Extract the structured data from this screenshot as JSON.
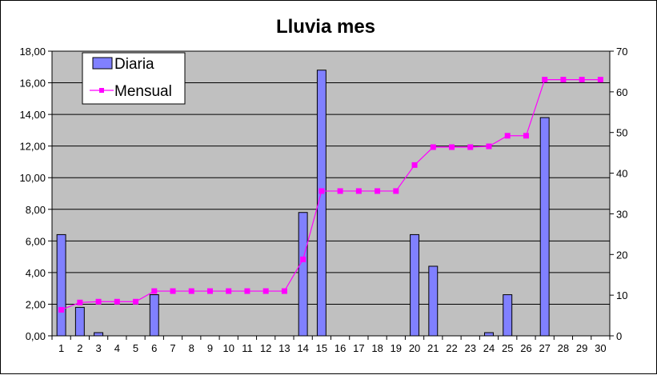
{
  "chart_data": {
    "type": "bar+line",
    "title": "Lluvia mes",
    "categories": [
      "1",
      "2",
      "3",
      "4",
      "5",
      "6",
      "7",
      "8",
      "9",
      "10",
      "11",
      "12",
      "13",
      "14",
      "15",
      "16",
      "17",
      "18",
      "19",
      "20",
      "21",
      "22",
      "23",
      "24",
      "25",
      "26",
      "27",
      "28",
      "29",
      "30"
    ],
    "series": [
      {
        "name": "Diaria",
        "type": "bar",
        "axis": "left",
        "color": "#8080ff",
        "values": [
          6.4,
          1.8,
          0.2,
          0,
          0,
          2.6,
          0,
          0,
          0,
          0,
          0,
          0,
          0,
          7.8,
          16.8,
          0,
          0,
          0,
          0,
          6.4,
          4.4,
          0,
          0,
          0.2,
          2.6,
          0,
          13.8,
          0,
          0,
          0
        ]
      },
      {
        "name": "Mensual",
        "type": "line",
        "axis": "right",
        "color": "#ff00ff",
        "values": [
          6.4,
          8.2,
          8.4,
          8.4,
          8.4,
          11.0,
          11.0,
          11.0,
          11.0,
          11.0,
          11.0,
          11.0,
          11.0,
          18.8,
          35.6,
          35.6,
          35.6,
          35.6,
          35.6,
          42.0,
          46.4,
          46.4,
          46.4,
          46.6,
          49.2,
          49.2,
          63.0,
          63.0,
          63.0,
          63.0
        ]
      }
    ],
    "y_left": {
      "lim": [
        0,
        18
      ],
      "ticks": [
        "0,00",
        "2,00",
        "4,00",
        "6,00",
        "8,00",
        "10,00",
        "12,00",
        "14,00",
        "16,00",
        "18,00"
      ]
    },
    "y_right": {
      "lim": [
        0,
        70
      ],
      "ticks": [
        "0",
        "10",
        "20",
        "30",
        "40",
        "50",
        "60",
        "70"
      ]
    },
    "xlabel": "",
    "ylabel": "",
    "grid": "horizontal",
    "legend_position": "top-left",
    "plot_background": "#c0c0c0"
  }
}
